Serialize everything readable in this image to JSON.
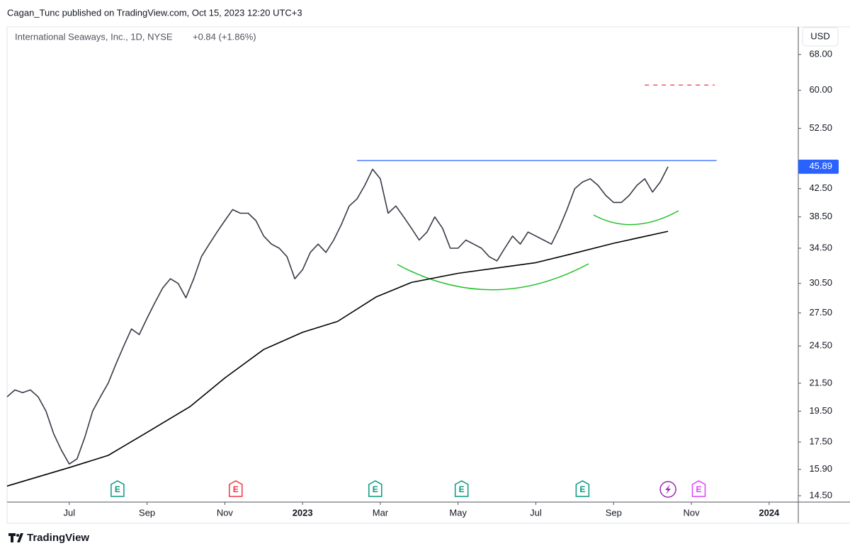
{
  "header": {
    "published": "Cagan_Tunc published on TradingView.com, Oct 15, 2023 12:20 UTC+3"
  },
  "footer": {
    "brand": "TradingView"
  },
  "chart_data": {
    "type": "line",
    "symbol": "International Seaways, Inc., 1D, NYSE",
    "change": "+0.84 (+1.86%)",
    "currency": "USD",
    "log_scale": true,
    "grid": false,
    "xlim": [
      4.4,
      24.75
    ],
    "ylim": [
      14.18,
      74.9
    ],
    "xticks": [
      {
        "value": 6,
        "label": "Jul"
      },
      {
        "value": 8,
        "label": "Sep"
      },
      {
        "value": 10,
        "label": "Nov"
      },
      {
        "value": 12,
        "label": "2023"
      },
      {
        "value": 14,
        "label": "Mar"
      },
      {
        "value": 16,
        "label": "May"
      },
      {
        "value": 18,
        "label": "Jul"
      },
      {
        "value": 20,
        "label": "Sep"
      },
      {
        "value": 22,
        "label": "Nov"
      },
      {
        "value": 24,
        "label": "2024"
      }
    ],
    "yticks": [
      {
        "value": 68,
        "label": "68.00"
      },
      {
        "value": 60,
        "label": "60.00"
      },
      {
        "value": 52.5,
        "label": "52.50"
      },
      {
        "value": 42.5,
        "label": "42.50"
      },
      {
        "value": 38.5,
        "label": "38.50"
      },
      {
        "value": 34.5,
        "label": "34.50"
      },
      {
        "value": 30.5,
        "label": "30.50"
      },
      {
        "value": 27.5,
        "label": "27.50"
      },
      {
        "value": 24.5,
        "label": "24.50"
      },
      {
        "value": 21.5,
        "label": "21.50"
      },
      {
        "value": 19.5,
        "label": "19.50"
      },
      {
        "value": 17.5,
        "label": "17.50"
      },
      {
        "value": 15.9,
        "label": "15.90"
      },
      {
        "value": 14.5,
        "label": "14.50"
      }
    ],
    "last_price": 45.89,
    "last_price_color": "#2962ff",
    "series": [
      {
        "color": "#363a45",
        "x": [
          4.4,
          4.6,
          4.8,
          5.0,
          5.2,
          5.4,
          5.6,
          5.8,
          6.0,
          6.2,
          6.4,
          6.6,
          6.8,
          7.0,
          7.2,
          7.4,
          7.6,
          7.8,
          8.0,
          8.2,
          8.4,
          8.6,
          8.8,
          9.0,
          9.2,
          9.4,
          9.6,
          9.8,
          10.0,
          10.2,
          10.4,
          10.6,
          10.8,
          11.0,
          11.2,
          11.4,
          11.6,
          11.8,
          12.0,
          12.2,
          12.4,
          12.6,
          12.8,
          13.0,
          13.2,
          13.4,
          13.6,
          13.8,
          14.0,
          14.2,
          14.4,
          14.6,
          14.8,
          15.0,
          15.2,
          15.4,
          15.6,
          15.8,
          16.0,
          16.2,
          16.4,
          16.6,
          16.8,
          17.0,
          17.2,
          17.4,
          17.6,
          17.8,
          18.0,
          18.2,
          18.4,
          18.6,
          18.8,
          19.0,
          19.2,
          19.4,
          19.6,
          19.8,
          20.0,
          20.2,
          20.4,
          20.6,
          20.8,
          21.0,
          21.2,
          21.4
        ],
        "values": [
          20.5,
          21,
          20.8,
          21,
          20.5,
          19.5,
          18,
          17,
          16.2,
          16.5,
          17.8,
          19.5,
          20.5,
          21.5,
          23,
          24.5,
          26,
          25.5,
          27,
          28.5,
          30,
          31,
          30.5,
          29,
          31,
          33.5,
          35,
          36.5,
          38,
          39.5,
          39,
          39,
          38,
          36,
          35,
          34.5,
          33.5,
          31,
          32,
          34,
          35,
          34,
          35.5,
          37.5,
          40,
          41,
          43,
          45.5,
          44,
          39,
          40,
          38.5,
          37,
          35.5,
          36.5,
          38.5,
          37,
          34.5,
          34.5,
          35.5,
          35,
          34.5,
          33.5,
          33,
          34.5,
          36,
          35,
          36.5,
          36,
          35.5,
          35,
          37,
          39.5,
          42.5,
          43.5,
          44,
          43,
          41.5,
          40.5,
          40.5,
          41.5,
          43,
          44,
          42,
          43.5,
          45.89
        ]
      },
      {
        "color": "#000000",
        "x": [
          4.4,
          6,
          7,
          8,
          9.1,
          10,
          11,
          12,
          12.9,
          13.9,
          14.8,
          16,
          17,
          18,
          18.9,
          20,
          21.4
        ],
        "values": [
          15.0,
          16.0,
          16.7,
          18.1,
          19.8,
          21.9,
          24.2,
          25.7,
          26.7,
          29.1,
          30.6,
          31.6,
          32.2,
          32.8,
          33.8,
          35.1,
          36.6
        ]
      }
    ],
    "hlines": [
      {
        "value": 46.9,
        "x": [
          13.4,
          22.65
        ],
        "color": "#2962ff",
        "dashed": false
      },
      {
        "value": 61.1,
        "x": [
          20.8,
          22.6
        ],
        "color": "#f23645",
        "dashed": true
      }
    ],
    "events": [
      {
        "x": 7.24,
        "label": "E",
        "color": "#089981"
      },
      {
        "x": 10.28,
        "label": "E",
        "color": "#f23645"
      },
      {
        "x": 13.87,
        "label": "E",
        "color": "#089981"
      },
      {
        "x": 16.09,
        "label": "E",
        "color": "#089981"
      },
      {
        "x": 19.2,
        "label": "E",
        "color": "#089981"
      },
      {
        "x": 21.4,
        "symbol": "bolt",
        "color": "#9c27b0"
      },
      {
        "x": 22.19,
        "label": "E",
        "color": "#e040fb"
      }
    ]
  }
}
